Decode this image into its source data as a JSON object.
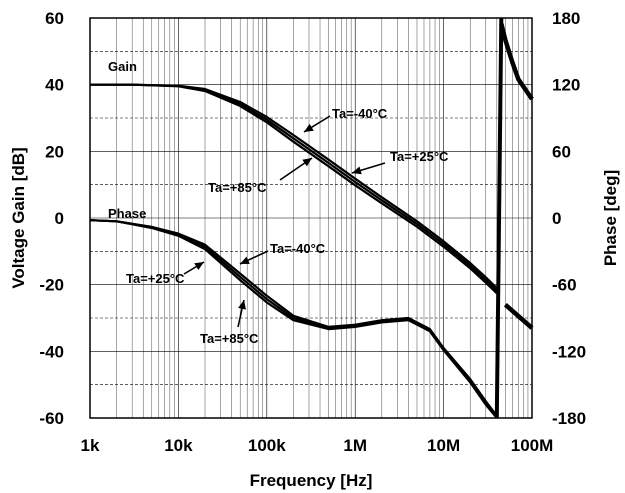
{
  "chart_data": {
    "type": "line",
    "title": "",
    "xlabel": "Frequency [Hz]",
    "ylabel": "Voltage Gain [dB]",
    "y2label": "Phase [deg]",
    "xscale": "log",
    "xlim": [
      1000,
      100000000
    ],
    "ylim": [
      -60,
      60
    ],
    "y2lim": [
      -180,
      180
    ],
    "grid": true,
    "x_ticks": [
      1000,
      10000,
      100000,
      1000000,
      10000000,
      100000000
    ],
    "x_tick_labels": [
      "1k",
      "10k",
      "100k",
      "1M",
      "10M",
      "100M"
    ],
    "y_ticks": [
      -60,
      -40,
      -20,
      0,
      20,
      40,
      60
    ],
    "y_tick_labels": [
      "-60",
      "-40",
      "-20",
      "0",
      "20",
      "40",
      "60"
    ],
    "y2_ticks": [
      -180,
      -120,
      -60,
      0,
      60,
      120,
      180
    ],
    "y2_tick_labels": [
      "-180",
      "-120",
      "-60",
      "0",
      "60",
      "120",
      "180"
    ],
    "series": [
      {
        "name": "Gain",
        "axis": "left",
        "temperature": "Ta=-40°C",
        "x": [
          1000,
          3000,
          10000,
          20000,
          50000,
          100000,
          200000,
          500000,
          1000000,
          2000000,
          5000000,
          10000000,
          20000000,
          30000000,
          40000000
        ],
        "y": [
          40,
          40,
          39.7,
          38.7,
          34.8,
          30.3,
          24.9,
          17.5,
          11.8,
          6.2,
          -1.0,
          -7.0,
          -13.5,
          -17.8,
          -21.0
        ]
      },
      {
        "name": "Gain",
        "axis": "left",
        "temperature": "Ta=+25°C",
        "x": [
          1000,
          3000,
          10000,
          20000,
          50000,
          100000,
          200000,
          500000,
          1000000,
          2000000,
          5000000,
          10000000,
          20000000,
          30000000,
          40000000
        ],
        "y": [
          40,
          40,
          39.6,
          38.4,
          34.2,
          29.5,
          23.9,
          16.5,
          10.8,
          5.3,
          -1.8,
          -7.8,
          -14.3,
          -18.6,
          -21.8
        ]
      },
      {
        "name": "Gain",
        "axis": "left",
        "temperature": "Ta=+85°C",
        "x": [
          1000,
          3000,
          10000,
          20000,
          50000,
          100000,
          200000,
          500000,
          1000000,
          2000000,
          5000000,
          10000000,
          20000000,
          30000000,
          40000000
        ],
        "y": [
          40,
          40,
          39.5,
          38.1,
          33.6,
          28.7,
          22.9,
          15.5,
          9.8,
          4.4,
          -2.6,
          -8.6,
          -15.1,
          -19.4,
          -22.6
        ]
      },
      {
        "name": "Phase",
        "axis": "right",
        "temperature": "Ta=-40°C",
        "x": [
          1000,
          2000,
          5000,
          10000,
          20000,
          50000,
          100000,
          200000,
          500000,
          1000000,
          2000000,
          4000000,
          7000000,
          10000000,
          20000000,
          30000000,
          40000000
        ],
        "y": [
          -2,
          -3,
          -8,
          -14,
          -24,
          -50,
          -70,
          -88,
          -98,
          -96,
          -92,
          -90,
          -100,
          -117,
          -145,
          -165,
          -178
        ]
      },
      {
        "name": "Phase",
        "axis": "right",
        "temperature": "Ta=+25°C",
        "x": [
          1000,
          2000,
          5000,
          10000,
          20000,
          50000,
          100000,
          200000,
          500000,
          1000000,
          2000000,
          4000000,
          7000000,
          10000000,
          20000000,
          30000000,
          40000000
        ],
        "y": [
          -2,
          -3,
          -8,
          -15,
          -26,
          -53,
          -73,
          -90,
          -99,
          -97,
          -93,
          -91,
          -101,
          -118,
          -147,
          -167,
          -179
        ]
      },
      {
        "name": "Phase",
        "axis": "right",
        "temperature": "Ta=+85°C",
        "x": [
          1000,
          2000,
          5000,
          10000,
          20000,
          50000,
          100000,
          200000,
          500000,
          1000000,
          2000000,
          4000000,
          7000000,
          10000000,
          20000000,
          30000000,
          40000000
        ],
        "y": [
          -2,
          -3,
          -9,
          -16,
          -28,
          -56,
          -76,
          -92,
          -100,
          -98,
          -94,
          -92,
          -102,
          -119,
          -148,
          -168,
          -180
        ]
      }
    ],
    "phase_wrap": {
      "x": [
        45000000,
        50000000,
        60000000,
        70000000,
        100000000
      ],
      "y": [
        175,
        160,
        140,
        125,
        107
      ]
    },
    "annotations": {
      "gain_label": "Gain",
      "phase_label": "Phase",
      "gain_m40": "Ta=-40°C",
      "gain_p25": "Ta=+25°C",
      "gain_p85": "Ta=+85°C",
      "phase_m40": "Ta=-40°C",
      "phase_p25": "Ta=+25°C",
      "phase_p85": "Ta=+85°C"
    }
  }
}
